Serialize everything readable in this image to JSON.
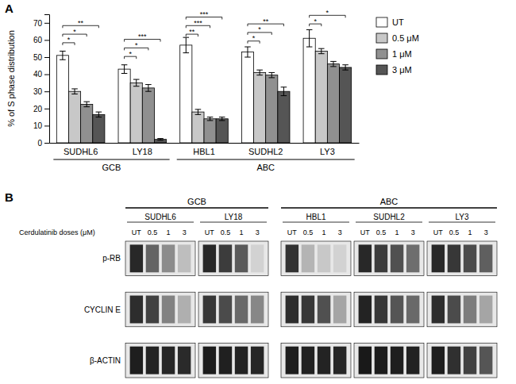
{
  "chart_data": [
    {
      "type": "bar",
      "title": "A",
      "ylabel": "% of S phase distribution",
      "categories": [
        "SUDHL6",
        "LY18",
        "HBL1",
        "SUDHL2",
        "LY3"
      ],
      "series": [
        {
          "name": "UT",
          "color": "#ffffff",
          "values": [
            51,
            43,
            57,
            53,
            61
          ],
          "errors": [
            2.5,
            2.5,
            4.5,
            3.0,
            5.0
          ]
        },
        {
          "name": "0.5 μM",
          "color": "#c8c8c8",
          "values": [
            30,
            35,
            18,
            41,
            53.5
          ],
          "errors": [
            1.5,
            2.0,
            1.5,
            1.5,
            1.5
          ]
        },
        {
          "name": "1 μM",
          "color": "#909090",
          "values": [
            22.5,
            32,
            14,
            39.5,
            46
          ],
          "errors": [
            1.5,
            2.0,
            1.0,
            1.5,
            1.5
          ]
        },
        {
          "name": "3 μM",
          "color": "#555555",
          "values": [
            16.5,
            2,
            14,
            30,
            44
          ],
          "errors": [
            1.5,
            0.5,
            1.0,
            2.5,
            1.5
          ]
        }
      ],
      "ylim": [
        0,
        75
      ],
      "yticks": [
        0,
        10,
        20,
        30,
        40,
        50,
        60,
        70
      ],
      "legend": "right",
      "category_groups": [
        {
          "label": "GCB",
          "categories": [
            "SUDHL6",
            "LY18"
          ]
        },
        {
          "label": "ABC",
          "categories": [
            "HBL1",
            "SUDHL2",
            "LY3"
          ]
        }
      ],
      "significance": [
        [
          {
            "bars": [
              0,
              1
            ],
            "y": 57,
            "label": "*"
          },
          {
            "bars": [
              0,
              2
            ],
            "y": 62,
            "label": "*"
          },
          {
            "bars": [
              0,
              3
            ],
            "y": 67,
            "label": "**"
          }
        ],
        [
          {
            "bars": [
              0,
              1
            ],
            "y": 49,
            "label": "*"
          },
          {
            "bars": [
              0,
              2
            ],
            "y": 54,
            "label": "*"
          },
          {
            "bars": [
              0,
              3
            ],
            "y": 59,
            "label": "***"
          }
        ],
        [
          {
            "bars": [
              0,
              1
            ],
            "y": 62,
            "label": "**"
          },
          {
            "bars": [
              0,
              2
            ],
            "y": 67,
            "label": "***"
          },
          {
            "bars": [
              0,
              3
            ],
            "y": 72,
            "label": "***"
          }
        ],
        [
          {
            "bars": [
              0,
              1
            ],
            "y": 58,
            "label": "*"
          },
          {
            "bars": [
              0,
              2
            ],
            "y": 63,
            "label": "*"
          },
          {
            "bars": [
              0,
              3
            ],
            "y": 68,
            "label": "**"
          }
        ],
        [
          {
            "bars": [
              0,
              1
            ],
            "y": 68,
            "label": "*"
          },
          {
            "bars": [
              0,
              3
            ],
            "y": 73,
            "label": "*"
          }
        ]
      ]
    },
    {
      "type": "heatmap",
      "title": "B",
      "xlabel": "Cerdulatinib doses (μM)",
      "categories": [
        "UT",
        "0.5",
        "1",
        "3"
      ],
      "groups": [
        "SUDHL6",
        "LY18",
        "HBL1",
        "SUDHL2",
        "LY3"
      ],
      "group_families": [
        {
          "label": "GCB",
          "groups": [
            "SUDHL6",
            "LY18"
          ]
        },
        {
          "label": "ABC",
          "groups": [
            "HBL1",
            "SUDHL2",
            "LY3"
          ]
        }
      ],
      "rows": [
        "p-RB",
        "CYCLIN E",
        "β-ACTIN"
      ],
      "cells": [
        [
          [
            40,
            100,
            140,
            190
          ],
          [
            40,
            60,
            90,
            210
          ],
          [
            50,
            180,
            200,
            210
          ],
          [
            40,
            60,
            80,
            110
          ],
          [
            40,
            55,
            75,
            95
          ]
        ],
        [
          [
            45,
            65,
            130,
            175
          ],
          [
            55,
            75,
            105,
            135
          ],
          [
            45,
            55,
            80,
            165
          ],
          [
            35,
            55,
            85,
            105
          ],
          [
            45,
            75,
            125,
            165
          ]
        ],
        [
          [
            30,
            35,
            38,
            42
          ],
          [
            28,
            32,
            35,
            38
          ],
          [
            30,
            33,
            35,
            38
          ],
          [
            25,
            28,
            30,
            33
          ],
          [
            30,
            48,
            65,
            85
          ]
        ]
      ]
    }
  ]
}
